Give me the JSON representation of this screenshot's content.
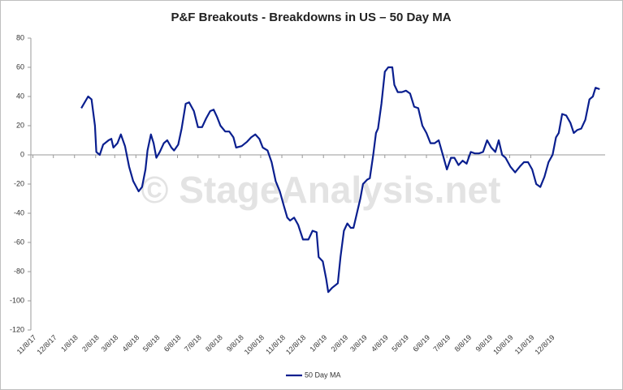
{
  "chart_data": {
    "type": "line",
    "title": "P&F Breakouts - Breakdowns in US – 50 Day MA",
    "watermark": "© StageAnalysis.net",
    "x": [
      "1/18/18",
      "1/28/18",
      "2/2/18",
      "2/7/18",
      "2/9/18",
      "2/14/18",
      "2/19/18",
      "2/27/18",
      "3/3/18",
      "3/6/18",
      "3/12/18",
      "3/17/18",
      "3/23/18",
      "3/29/18",
      "4/4/18",
      "4/12/18",
      "4/17/18",
      "4/22/18",
      "4/25/18",
      "4/30/18",
      "5/4/18",
      "5/8/18",
      "5/13/18",
      "5/19/18",
      "5/24/18",
      "5/30/18",
      "6/3/18",
      "6/9/18",
      "6/14/18",
      "6/20/18",
      "6/25/18",
      "7/2/18",
      "7/8/18",
      "7/14/18",
      "7/20/18",
      "7/26/18",
      "7/31/18",
      "8/5/18",
      "8/10/18",
      "8/17/18",
      "8/23/18",
      "8/29/18",
      "9/2/18",
      "9/10/18",
      "9/18/18",
      "9/24/18",
      "9/30/18",
      "10/6/18",
      "10/11/18",
      "10/18/18",
      "10/24/18",
      "10/30/18",
      "11/5/18",
      "11/11/18",
      "11/16/18",
      "11/20/18",
      "11/26/18",
      "12/2/18",
      "12/9/18",
      "12/17/18",
      "12/23/18",
      "12/29/18",
      "1/1/19",
      "1/7/19",
      "1/12/19",
      "1/15/19",
      "1/21/19",
      "1/29/19",
      "2/2/19",
      "2/7/19",
      "2/12/19",
      "2/17/19",
      "2/21/19",
      "2/26/19",
      "3/3/19",
      "3/7/19",
      "3/13/19",
      "3/17/19",
      "3/22/19",
      "3/26/19",
      "3/29/19",
      "4/3/19",
      "4/8/19",
      "4/13/19",
      "4/19/19",
      "4/22/19",
      "4/27/19",
      "5/3/19",
      "5/9/19",
      "5/15/19",
      "5/21/19",
      "5/27/19",
      "6/2/19",
      "6/8/19",
      "6/14/19",
      "6/20/19",
      "6/26/19",
      "7/2/19",
      "7/8/19",
      "7/14/19",
      "7/19/19",
      "7/25/19",
      "7/31/19",
      "8/6/19",
      "8/12/19",
      "8/18/19",
      "8/24/19",
      "8/30/19",
      "9/5/19",
      "9/11/19",
      "9/17/19",
      "9/22/19",
      "9/27/19",
      "10/2/19",
      "10/9/19",
      "10/16/19",
      "10/23/19",
      "10/29/19",
      "11/4/19",
      "11/10/19",
      "11/16/19",
      "11/22/19",
      "11/28/19",
      "12/4/19",
      "12/10/19",
      "12/15/19",
      "12/19/19",
      "12/24/19",
      "12/30/19",
      "1/5/20",
      "1/10/20",
      "1/15/20",
      "1/21/20",
      "1/27/20",
      "2/2/20",
      "2/7/20",
      "2/11/20",
      "2/17/20"
    ],
    "series": [
      {
        "name": "50 Day MA",
        "color": "#0a1f8f",
        "values": [
          32,
          40,
          38,
          20,
          2,
          0,
          7,
          10,
          11,
          5,
          8,
          14,
          6,
          -8,
          -18,
          -25,
          -22,
          -10,
          3,
          14,
          8,
          -2,
          2,
          8,
          10,
          5,
          3,
          7,
          18,
          35,
          36,
          30,
          19,
          19,
          25,
          30,
          31,
          26,
          20,
          16,
          16,
          12,
          5,
          6,
          9,
          12,
          14,
          11,
          5,
          3,
          -5,
          -18,
          -25,
          -35,
          -43,
          -45,
          -43,
          -48,
          -58,
          -58,
          -52,
          -53,
          -70,
          -73,
          -85,
          -94,
          -91,
          -88,
          -70,
          -52,
          -47,
          -50,
          -50,
          -40,
          -30,
          -20,
          -17,
          -16,
          0,
          15,
          18,
          35,
          57,
          60,
          60,
          48,
          43,
          43,
          44,
          42,
          33,
          32,
          20,
          15,
          8,
          8,
          10,
          0,
          -10,
          -2,
          -2,
          -7,
          -4,
          -6,
          2,
          1,
          1,
          2,
          10,
          5,
          2,
          10,
          0,
          -2,
          -8,
          -12,
          -8,
          -5,
          -5,
          -10,
          -20,
          -22,
          -15,
          -5,
          0,
          12,
          15,
          28,
          27,
          22,
          15,
          17,
          18,
          24,
          38,
          40,
          46,
          45
        ]
      }
    ],
    "xlim": [
      "11/5/17",
      "2/25/20"
    ],
    "xticks": [
      "11/8/17",
      "12/8/17",
      "1/8/18",
      "2/8/18",
      "3/8/18",
      "4/8/18",
      "5/8/18",
      "6/8/18",
      "7/8/18",
      "8/8/18",
      "9/8/18",
      "10/8/18",
      "11/8/18",
      "12/8/18",
      "1/8/19",
      "2/8/19",
      "3/8/19",
      "4/8/19",
      "5/8/19",
      "6/8/19",
      "7/8/19",
      "8/8/19",
      "9/8/19",
      "10/8/19",
      "11/8/19",
      "12/8/19"
    ],
    "ylim": [
      -120,
      80
    ],
    "yticks": [
      -120,
      -100,
      -80,
      -60,
      -40,
      -20,
      0,
      20,
      40,
      60,
      80
    ],
    "grid": false,
    "legend": "bottom"
  }
}
